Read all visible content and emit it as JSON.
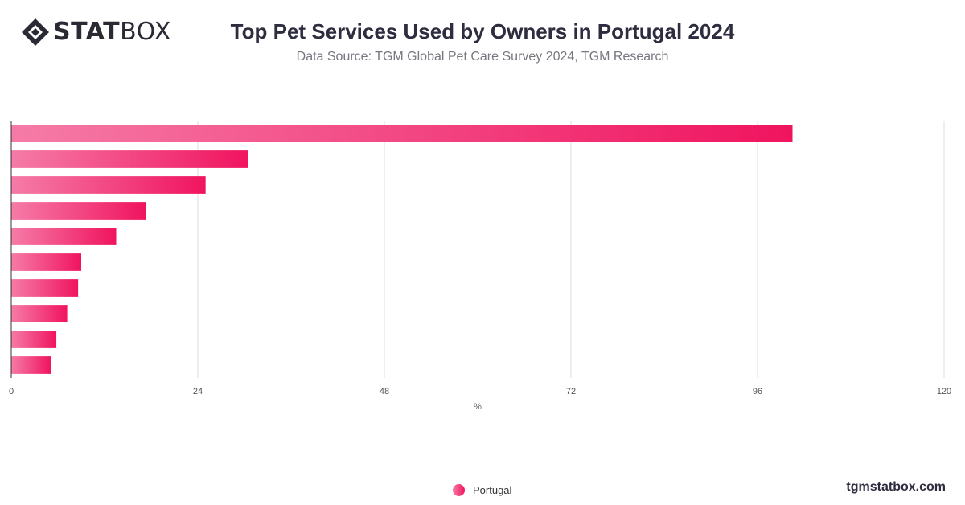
{
  "brand": {
    "logo_bold": "STAT",
    "logo_light": "BOX"
  },
  "header": {
    "title": "Top Pet Services Used by Owners in Portugal 2024",
    "subtitle": "Data Source: TGM Global Pet Care Survey 2024, TGM Research"
  },
  "footer": {
    "site": "tgmstatbox.com"
  },
  "colors": {
    "bar_start": "#f57ba7",
    "bar_end": "#f0145f",
    "grid": "#dddddd",
    "axis": "#333333"
  },
  "chart_data": {
    "type": "bar",
    "orientation": "horizontal",
    "title": "Top Pet Services Used by Owners in Portugal 2024",
    "xlabel": "%",
    "xlim": [
      0,
      120
    ],
    "xticks": [
      0,
      24,
      48,
      72,
      96,
      120
    ],
    "categories_shown": false,
    "grid": true,
    "legend_position": "bottom",
    "series": [
      {
        "name": "Portugal",
        "values": [
          100.5,
          30.5,
          25,
          17.3,
          13.5,
          9,
          8.6,
          7.2,
          5.8,
          5.1
        ]
      }
    ]
  }
}
